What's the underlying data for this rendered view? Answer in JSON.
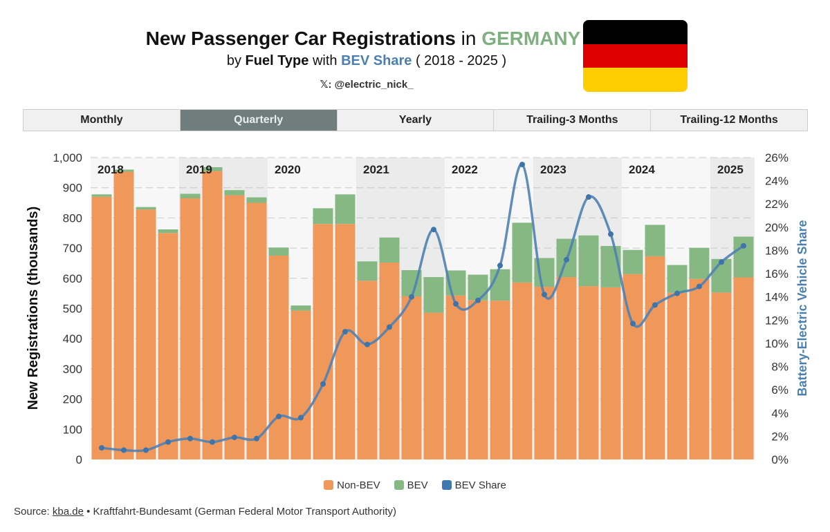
{
  "header": {
    "title_bold": "New Passenger Car Registrations",
    "title_in": "in",
    "title_country": "GERMANY",
    "subtitle_by": "by",
    "subtitle_fuel": "Fuel Type",
    "subtitle_with": "with",
    "subtitle_bev": "BEV Share",
    "subtitle_range": "( 2018 - 2025 )",
    "handle": "𝕏: @electric_nick_",
    "flag_colors": [
      "#000000",
      "#dd0000",
      "#ffce00"
    ]
  },
  "tabs": [
    {
      "label": "Monthly",
      "active": false
    },
    {
      "label": "Quarterly",
      "active": true
    },
    {
      "label": "Yearly",
      "active": false
    },
    {
      "label": "Trailing-3 Months",
      "active": false
    },
    {
      "label": "Trailing-12 Months",
      "active": false
    }
  ],
  "legend": [
    {
      "label": "Non-BEV",
      "color": "#f0985a"
    },
    {
      "label": "BEV",
      "color": "#86b883"
    },
    {
      "label": "BEV Share",
      "color": "#3f78b0"
    }
  ],
  "source": {
    "prefix": "Source:",
    "link": "kba.de",
    "rest": "• Kraftfahrt-Bundesamt (German Federal Motor Transport Authority)"
  },
  "chart_data": {
    "type": "bar",
    "stacked": true,
    "ylabel": "New Registrations (thousands)",
    "y2label": "Battery-Electric Vehicle Share",
    "ylim": [
      0,
      1000
    ],
    "y2lim": [
      0,
      26
    ],
    "yticks": [
      "0",
      "100",
      "200",
      "300",
      "400",
      "500",
      "600",
      "700",
      "800",
      "900",
      "1,000"
    ],
    "y2ticks": [
      "0%",
      "2%",
      "4%",
      "6%",
      "8%",
      "10%",
      "12%",
      "14%",
      "16%",
      "18%",
      "20%",
      "22%",
      "24%",
      "26%"
    ],
    "grid": true,
    "legend_position": "bottom",
    "years": [
      "2018",
      "2019",
      "2020",
      "2021",
      "2022",
      "2023",
      "2024",
      "2025"
    ],
    "categories": [
      "2018 Q1",
      "2018 Q2",
      "2018 Q3",
      "2018 Q4",
      "2019 Q1",
      "2019 Q2",
      "2019 Q3",
      "2019 Q4",
      "2020 Q1",
      "2020 Q2",
      "2020 Q3",
      "2020 Q4",
      "2021 Q1",
      "2021 Q2",
      "2021 Q3",
      "2021 Q4",
      "2022 Q1",
      "2022 Q2",
      "2022 Q3",
      "2022 Q4",
      "2023 Q1",
      "2023 Q2",
      "2023 Q3",
      "2023 Q4",
      "2024 Q1",
      "2024 Q2",
      "2024 Q3",
      "2024 Q4",
      "2025 Q1",
      "2025 Q2"
    ],
    "series": [
      {
        "name": "Non-BEV",
        "values": [
          870,
          953,
          828,
          750,
          865,
          955,
          875,
          850,
          675,
          493,
          780,
          780,
          592,
          652,
          540,
          486,
          543,
          527,
          526,
          586,
          572,
          604,
          574,
          570,
          614,
          673,
          552,
          598,
          553,
          603
        ]
      },
      {
        "name": "BEV",
        "values": [
          8,
          7,
          8,
          12,
          15,
          13,
          17,
          18,
          27,
          17,
          52,
          98,
          64,
          83,
          87,
          118,
          83,
          85,
          104,
          198,
          95,
          127,
          168,
          137,
          80,
          104,
          92,
          103,
          111,
          135
        ]
      },
      {
        "name": "BEV Share",
        "axis": "right",
        "values": [
          1.0,
          0.8,
          0.8,
          1.5,
          1.8,
          1.5,
          1.9,
          1.8,
          3.7,
          3.6,
          6.5,
          11.0,
          9.9,
          11.4,
          14.0,
          19.8,
          13.4,
          13.7,
          16.7,
          25.4,
          14.2,
          17.2,
          22.6,
          19.4,
          11.7,
          13.3,
          14.3,
          14.9,
          17.0,
          18.4
        ]
      }
    ]
  }
}
